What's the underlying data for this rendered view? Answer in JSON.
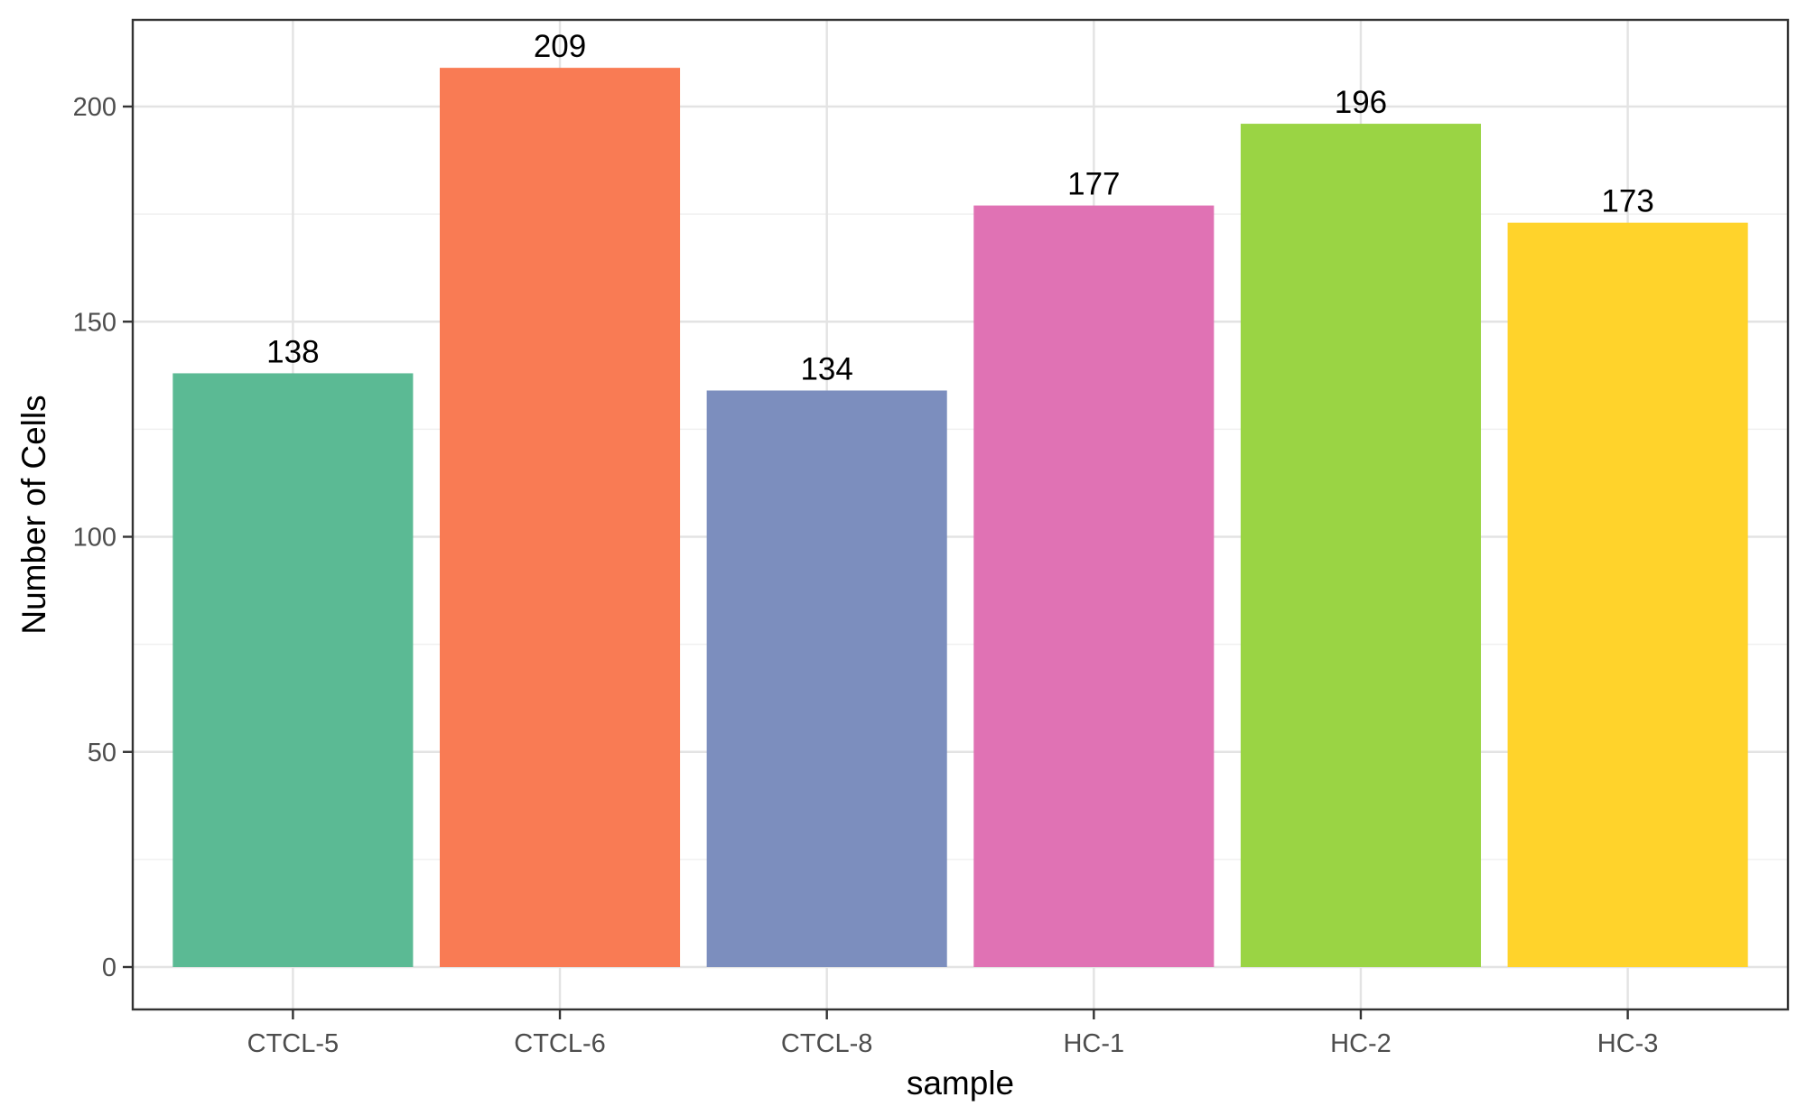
{
  "chart_data": {
    "type": "bar",
    "title": "",
    "xlabel": "sample",
    "ylabel": "Number of Cells",
    "categories": [
      "CTCL-5",
      "CTCL-6",
      "CTCL-8",
      "HC-1",
      "HC-2",
      "HC-3"
    ],
    "values": [
      138,
      209,
      134,
      177,
      196,
      173
    ],
    "data_labels": [
      "138",
      "209",
      "134",
      "177",
      "196",
      "173"
    ],
    "colors": [
      "#5BBA94",
      "#F97B54",
      "#7C8EBE",
      "#E072B4",
      "#9AD444",
      "#FFD32B"
    ],
    "ylim": [
      0,
      222
    ],
    "yticks": [
      0,
      50,
      100,
      150,
      200
    ],
    "ytick_labels": [
      "0",
      "50",
      "100",
      "150",
      "200"
    ],
    "grid": true,
    "legend": "none"
  }
}
